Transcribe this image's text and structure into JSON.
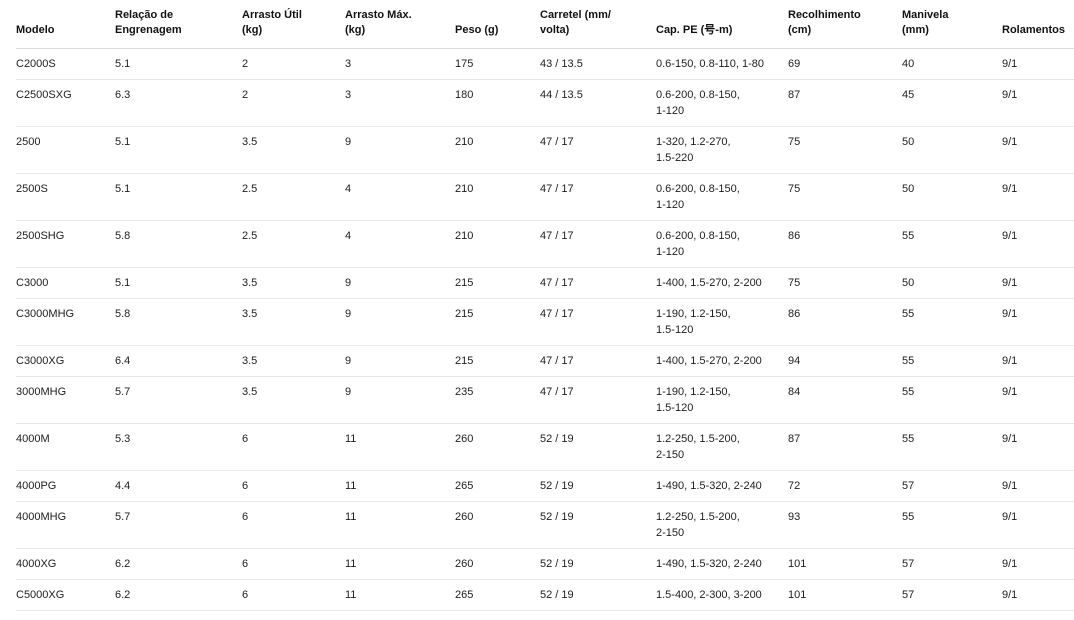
{
  "colors": {
    "text": "#1d1d1f",
    "header_text": "#111111",
    "border": "#e7e7e7",
    "header_border": "#dcdcdc",
    "background": "#ffffff"
  },
  "table": {
    "columns": [
      {
        "id": "modelo",
        "label": "Modelo"
      },
      {
        "id": "relacao",
        "label": "Relação de\nEngrenagem"
      },
      {
        "id": "arrasto_util",
        "label": "Arrasto Útil\n(kg)"
      },
      {
        "id": "arrasto_max",
        "label": "Arrasto Máx.\n(kg)"
      },
      {
        "id": "peso",
        "label": "Peso (g)"
      },
      {
        "id": "carretel",
        "label": "Carretel (mm/\nvolta)"
      },
      {
        "id": "cap_pe",
        "label": "Cap. PE (号-m)"
      },
      {
        "id": "recolhimento",
        "label": "Recolhimento\n(cm)"
      },
      {
        "id": "manivela",
        "label": "Manivela\n(mm)"
      },
      {
        "id": "rolamentos",
        "label": "Rolamentos"
      }
    ],
    "rows": [
      {
        "modelo": "C2000S",
        "relacao": "5.1",
        "arrasto_util": "2",
        "arrasto_max": "3",
        "peso": "175",
        "carretel": "43 / 13.5",
        "cap_pe": "0.6-150, 0.8-110, 1-80",
        "recolhimento": "69",
        "manivela": "40",
        "rolamentos": "9/1"
      },
      {
        "modelo": "C2500SXG",
        "relacao": "6.3",
        "arrasto_util": "2",
        "arrasto_max": "3",
        "peso": "180",
        "carretel": "44 / 13.5",
        "cap_pe": "0.6-200, 0.8-150,\n1-120",
        "recolhimento": "87",
        "manivela": "45",
        "rolamentos": "9/1"
      },
      {
        "modelo": "2500",
        "relacao": "5.1",
        "arrasto_util": "3.5",
        "arrasto_max": "9",
        "peso": "210",
        "carretel": "47 / 17",
        "cap_pe": "1-320, 1.2-270,\n1.5-220",
        "recolhimento": "75",
        "manivela": "50",
        "rolamentos": "9/1"
      },
      {
        "modelo": "2500S",
        "relacao": "5.1",
        "arrasto_util": "2.5",
        "arrasto_max": "4",
        "peso": "210",
        "carretel": "47 / 17",
        "cap_pe": "0.6-200, 0.8-150,\n1-120",
        "recolhimento": "75",
        "manivela": "50",
        "rolamentos": "9/1"
      },
      {
        "modelo": "2500SHG",
        "relacao": "5.8",
        "arrasto_util": "2.5",
        "arrasto_max": "4",
        "peso": "210",
        "carretel": "47 / 17",
        "cap_pe": "0.6-200, 0.8-150,\n1-120",
        "recolhimento": "86",
        "manivela": "55",
        "rolamentos": "9/1"
      },
      {
        "modelo": "C3000",
        "relacao": "5.1",
        "arrasto_util": "3.5",
        "arrasto_max": "9",
        "peso": "215",
        "carretel": "47 / 17",
        "cap_pe": "1-400, 1.5-270, 2-200",
        "recolhimento": "75",
        "manivela": "50",
        "rolamentos": "9/1"
      },
      {
        "modelo": "C3000MHG",
        "relacao": "5.8",
        "arrasto_util": "3.5",
        "arrasto_max": "9",
        "peso": "215",
        "carretel": "47 / 17",
        "cap_pe": "1-190, 1.2-150,\n1.5-120",
        "recolhimento": "86",
        "manivela": "55",
        "rolamentos": "9/1"
      },
      {
        "modelo": "C3000XG",
        "relacao": "6.4",
        "arrasto_util": "3.5",
        "arrasto_max": "9",
        "peso": "215",
        "carretel": "47 / 17",
        "cap_pe": "1-400, 1.5-270, 2-200",
        "recolhimento": "94",
        "manivela": "55",
        "rolamentos": "9/1"
      },
      {
        "modelo": "3000MHG",
        "relacao": "5.7",
        "arrasto_util": "3.5",
        "arrasto_max": "9",
        "peso": "235",
        "carretel": "47 / 17",
        "cap_pe": "1-190, 1.2-150,\n1.5-120",
        "recolhimento": "84",
        "manivela": "55",
        "rolamentos": "9/1"
      },
      {
        "modelo": "4000M",
        "relacao": "5.3",
        "arrasto_util": "6",
        "arrasto_max": "11",
        "peso": "260",
        "carretel": "52 / 19",
        "cap_pe": "1.2-250, 1.5-200,\n2-150",
        "recolhimento": "87",
        "manivela": "55",
        "rolamentos": "9/1"
      },
      {
        "modelo": "4000PG",
        "relacao": "4.4",
        "arrasto_util": "6",
        "arrasto_max": "11",
        "peso": "265",
        "carretel": "52 / 19",
        "cap_pe": "1-490, 1.5-320, 2-240",
        "recolhimento": "72",
        "manivela": "57",
        "rolamentos": "9/1"
      },
      {
        "modelo": "4000MHG",
        "relacao": "5.7",
        "arrasto_util": "6",
        "arrasto_max": "11",
        "peso": "260",
        "carretel": "52 / 19",
        "cap_pe": "1.2-250, 1.5-200,\n2-150",
        "recolhimento": "93",
        "manivela": "55",
        "rolamentos": "9/1"
      },
      {
        "modelo": "4000XG",
        "relacao": "6.2",
        "arrasto_util": "6",
        "arrasto_max": "11",
        "peso": "260",
        "carretel": "52 / 19",
        "cap_pe": "1-490, 1.5-320, 2-240",
        "recolhimento": "101",
        "manivela": "57",
        "rolamentos": "9/1"
      },
      {
        "modelo": "C5000XG",
        "relacao": "6.2",
        "arrasto_util": "6",
        "arrasto_max": "11",
        "peso": "265",
        "carretel": "52 / 19",
        "cap_pe": "1.5-400, 2-300, 3-200",
        "recolhimento": "101",
        "manivela": "57",
        "rolamentos": "9/1"
      }
    ]
  }
}
